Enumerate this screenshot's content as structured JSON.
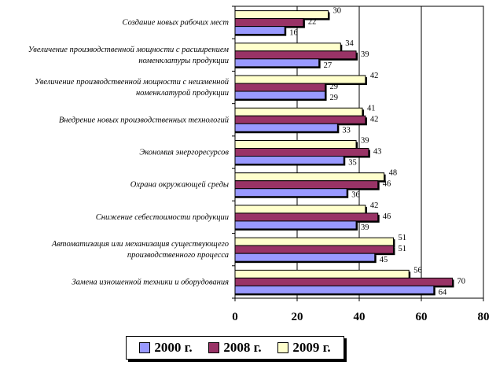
{
  "chart_data": {
    "type": "bar",
    "orientation": "horizontal",
    "categories": [
      "Создание новых рабочих мест",
      "Увеличение производственной мощности с расширением номенклатуры продукции",
      "Увеличение производственной мощности с неизменной номенклатурой продукции",
      "Внедрение новых производственных технологий",
      "Экономия энергоресурсов",
      "Охрана окружающей среды",
      "Снижение себестоимости продукции",
      "Автоматизация или механизация существующего производственного процесса",
      "Замена изношенной техники и оборудования"
    ],
    "category_lines": [
      [
        "Создание новых рабочих мест"
      ],
      [
        "Увеличение производственной мощности с расширением",
        "номенклатуры продукции"
      ],
      [
        "Увеличение производственной мощности с неизменной",
        "номенклатурой продукции"
      ],
      [
        "Внедрение новых производственных технологий"
      ],
      [
        "Экономия энергоресурсов"
      ],
      [
        "Охрана окружающей среды"
      ],
      [
        "Снижение себестоимости продукции"
      ],
      [
        "Автоматизация или механизация существующего",
        "производственного процесса"
      ],
      [
        "Замена изношенной техники и оборудования"
      ]
    ],
    "series": [
      {
        "name": "2000 г.",
        "color": "#9999ff",
        "values": [
          16,
          27,
          29,
          33,
          35,
          36,
          39,
          45,
          64
        ]
      },
      {
        "name": "2008 г.",
        "color": "#993366",
        "values": [
          22,
          39,
          29,
          42,
          43,
          46,
          46,
          51,
          70
        ]
      },
      {
        "name": "2009 г.",
        "color": "#ffffcc",
        "values": [
          30,
          34,
          42,
          41,
          39,
          48,
          42,
          51,
          56
        ]
      }
    ],
    "series_draw_order_top_to_bottom": [
      "2009 г.",
      "2008 г.",
      "2000 г."
    ],
    "xlim": [
      0,
      80
    ],
    "xticks": [
      0,
      20,
      40,
      60,
      80
    ],
    "grid": "vertical",
    "legend": "bottom",
    "title": "",
    "xlabel": "",
    "ylabel": ""
  }
}
